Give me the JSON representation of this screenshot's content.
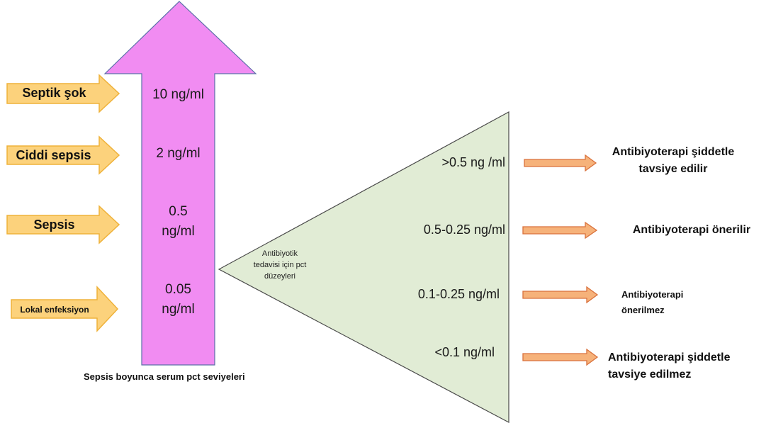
{
  "diagram": {
    "stages": [
      {
        "label": "Septik şok",
        "pct": "10 ng/ml"
      },
      {
        "label": "Ciddi sepsis",
        "pct": "2 ng/ml"
      },
      {
        "label": "Sepsis",
        "pct_line1": "0.5",
        "pct_line2": "ng/ml"
      },
      {
        "label": "Lokal enfeksiyon",
        "pct_line1": "0.05",
        "pct_line2": "ng/ml"
      }
    ],
    "caption": "Sepsis boyunca serum pct seviyeleri",
    "triangle_label": [
      "Antibiyotik",
      "tedavisi için pct",
      "düzeyleri"
    ],
    "thresholds": [
      {
        "range": ">0.5 ng /ml",
        "rec_line1": "Antibiyoterapi şiddetle",
        "rec_line2": "tavsiye edilir"
      },
      {
        "range": "0.5-0.25 ng/ml",
        "rec_line1": "Antibiyoterapi önerilir"
      },
      {
        "range": "0.1-0.25 ng/ml",
        "rec_line1": "Antibiyoterapi",
        "rec_line2": "önerilmez"
      },
      {
        "range": "<0.1 ng/ml",
        "rec_line1": "Antibiyoterapi şiddetle",
        "rec_line2": "tavsiye edilmez"
      }
    ],
    "colors": {
      "big_arrow_fill": "#f18cf2",
      "big_arrow_stroke": "#5b6fa8",
      "stage_arrow_fill": "#fcd27c",
      "stage_arrow_stroke": "#efb23a",
      "triangle_fill": "#e1ecd5",
      "triangle_stroke": "#4a4a4a",
      "rec_arrow_fill": "#f6b27a",
      "rec_arrow_stroke": "#d9713c"
    }
  }
}
